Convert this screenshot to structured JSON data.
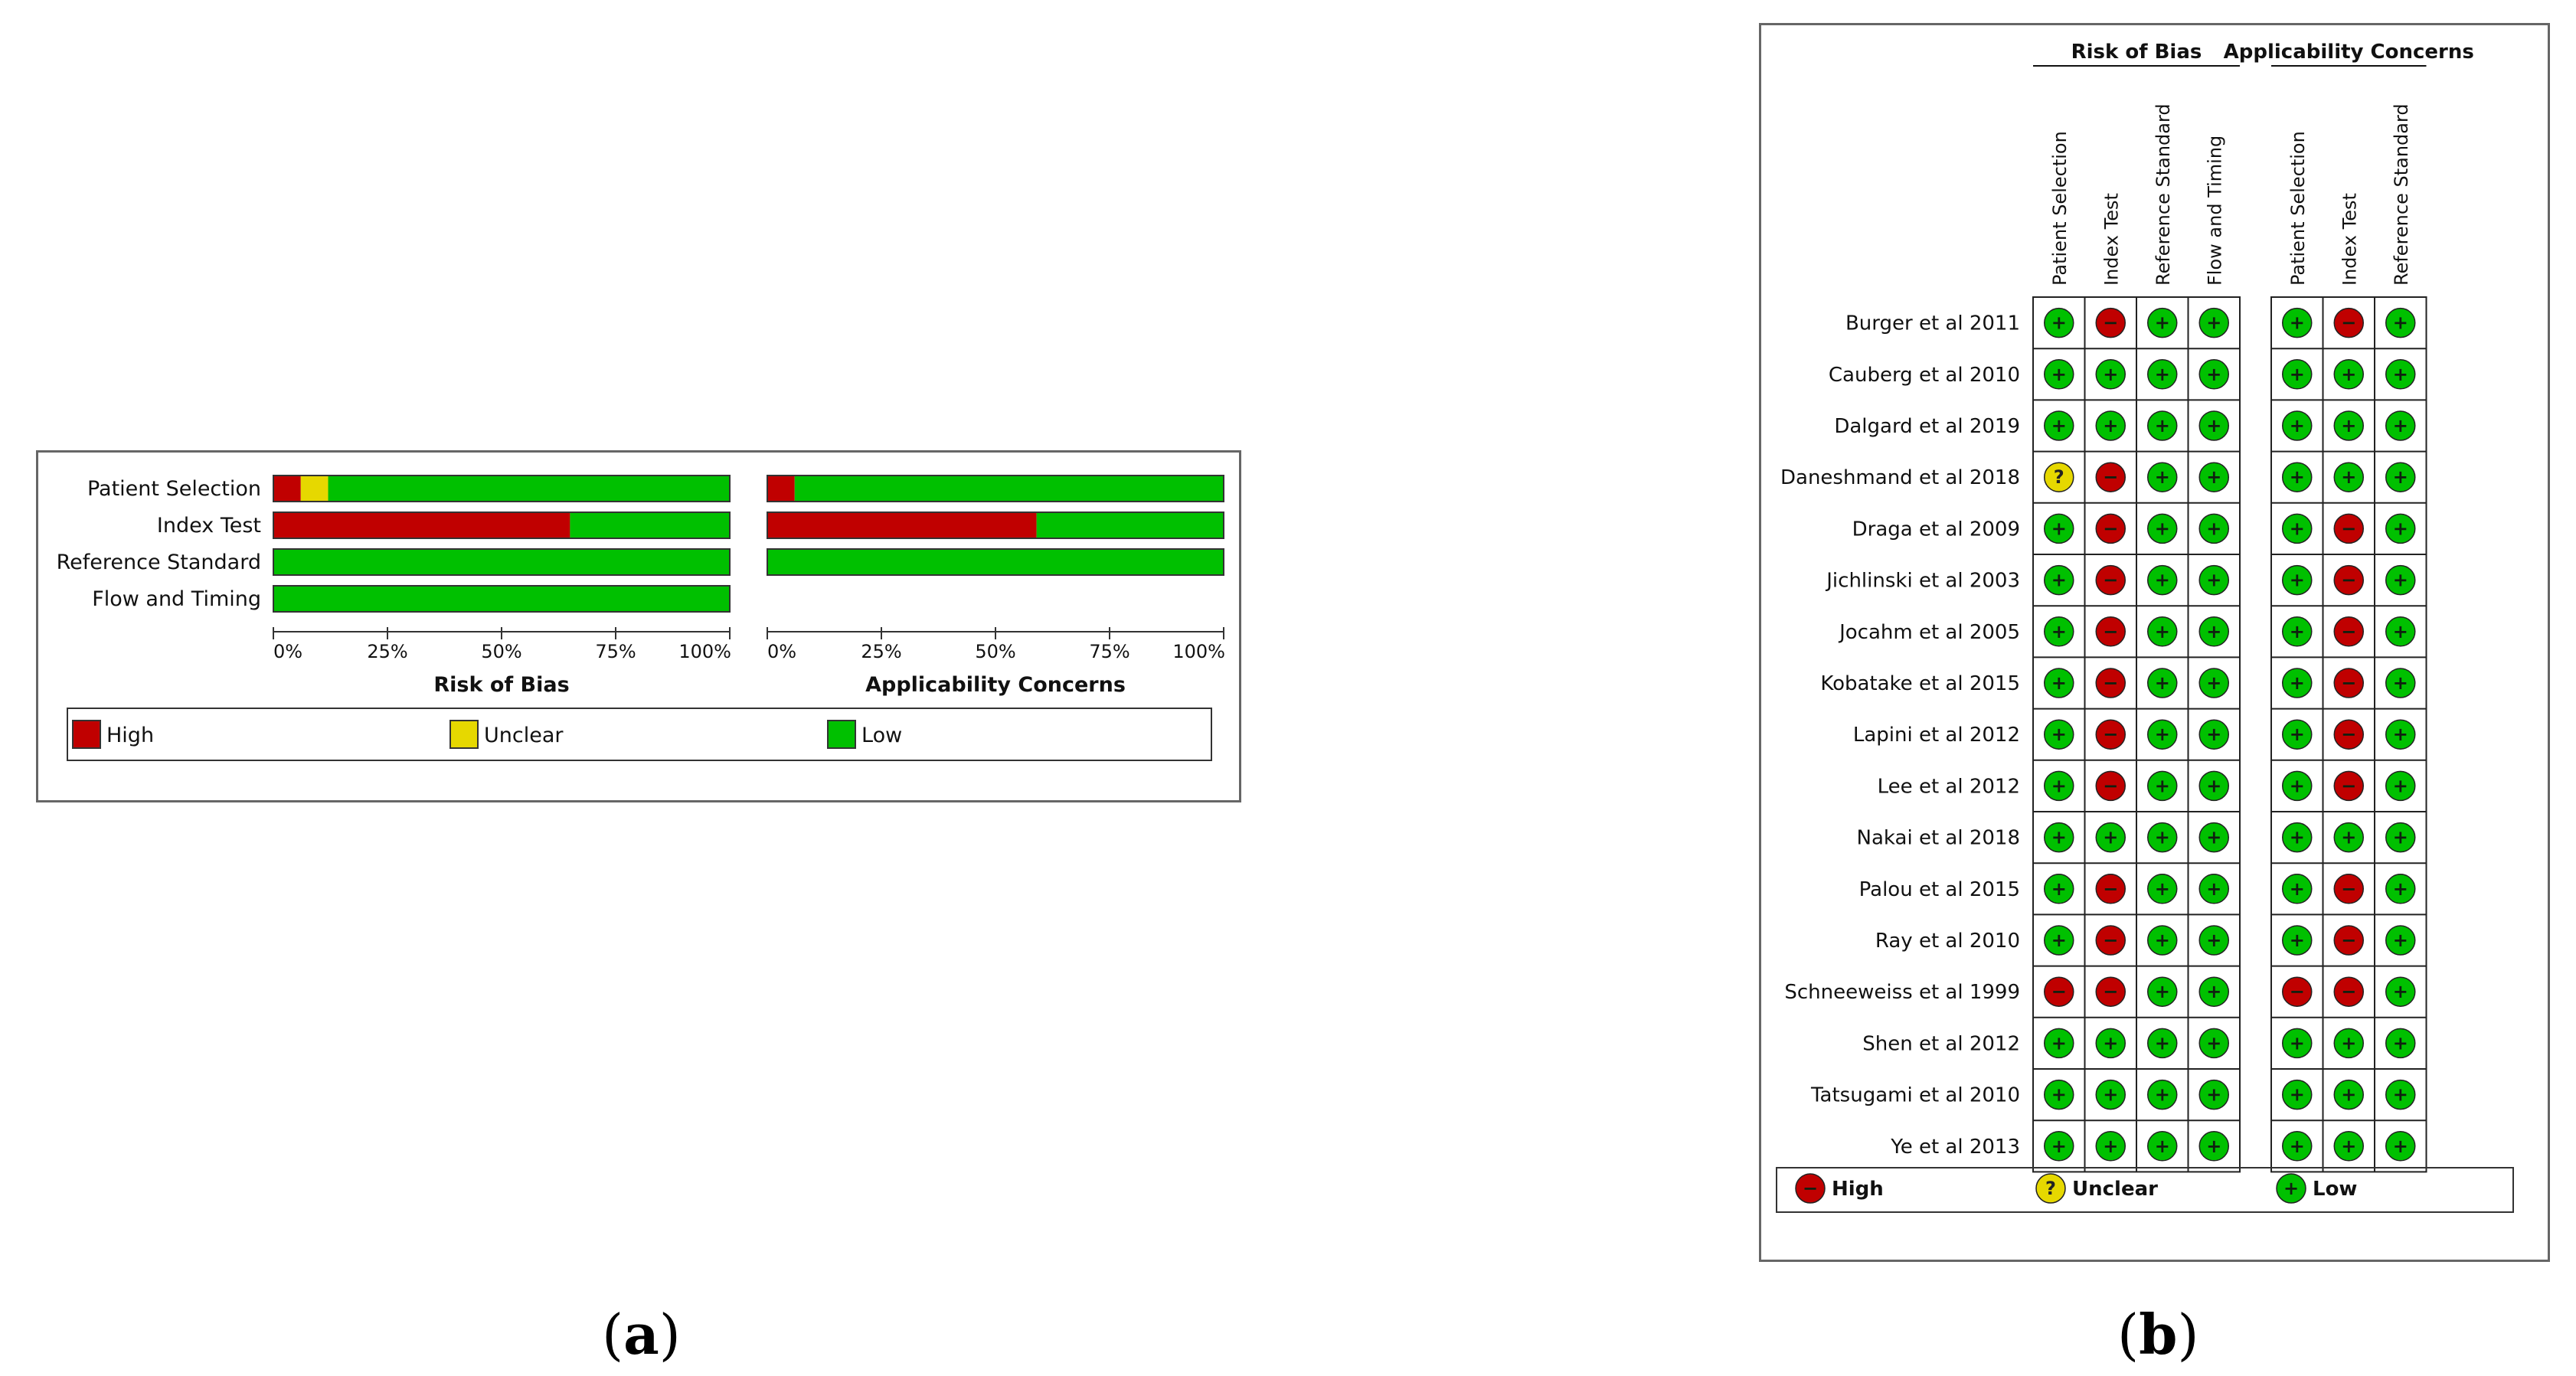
{
  "colors": {
    "high": "#C00000",
    "unclear": "#E6D800",
    "low": "#00C000",
    "border": "#666666"
  },
  "captions": {
    "a_open": "(",
    "a_letter": "a",
    "a_close": ")",
    "b_open": "(",
    "b_letter": "b",
    "b_close": ")"
  },
  "chart_data": [
    {
      "type": "bar",
      "orientation": "horizontal-stacked-percent",
      "panels": [
        {
          "title": "Risk of Bias",
          "categories": [
            "Patient Selection",
            "Index Test",
            "Reference Standard",
            "Flow and Timing"
          ],
          "series": [
            {
              "name": "High",
              "values": [
                6,
                65,
                0,
                0
              ]
            },
            {
              "name": "Unclear",
              "values": [
                6,
                0,
                0,
                0
              ]
            },
            {
              "name": "Low",
              "values": [
                88,
                35,
                100,
                100
              ]
            }
          ]
        },
        {
          "title": "Applicability Concerns",
          "categories": [
            "Patient Selection",
            "Index Test",
            "Reference Standard"
          ],
          "series": [
            {
              "name": "High",
              "values": [
                6,
                59,
                0
              ]
            },
            {
              "name": "Unclear",
              "values": [
                0,
                0,
                0
              ]
            },
            {
              "name": "Low",
              "values": [
                94,
                41,
                100
              ]
            }
          ]
        }
      ],
      "x_ticks": [
        "0%",
        "25%",
        "50%",
        "75%",
        "100%"
      ],
      "xlim": [
        0,
        100
      ],
      "legend": [
        "High",
        "Unclear",
        "Low"
      ],
      "legend_placement": "bottom"
    },
    {
      "type": "table",
      "group_headers": [
        "Risk of Bias",
        "Applicability Concerns"
      ],
      "groups": [
        {
          "title": "Risk of Bias",
          "columns": [
            "Patient Selection",
            "Index Test",
            "Reference Standard",
            "Flow and Timing"
          ]
        },
        {
          "title": "Applicability Concerns",
          "columns": [
            "Patient Selection",
            "Index Test",
            "Reference Standard"
          ]
        }
      ],
      "rows": [
        {
          "study": "Burger et al 2011",
          "rob": [
            "low",
            "high",
            "low",
            "low"
          ],
          "app": [
            "low",
            "high",
            "low"
          ]
        },
        {
          "study": "Cauberg et al 2010",
          "rob": [
            "low",
            "low",
            "low",
            "low"
          ],
          "app": [
            "low",
            "low",
            "low"
          ]
        },
        {
          "study": "Dalgard et al 2019",
          "rob": [
            "low",
            "low",
            "low",
            "low"
          ],
          "app": [
            "low",
            "low",
            "low"
          ]
        },
        {
          "study": "Daneshmand et al 2018",
          "rob": [
            "unclear",
            "high",
            "low",
            "low"
          ],
          "app": [
            "low",
            "low",
            "low"
          ]
        },
        {
          "study": "Draga et al 2009",
          "rob": [
            "low",
            "high",
            "low",
            "low"
          ],
          "app": [
            "low",
            "high",
            "low"
          ]
        },
        {
          "study": "Jichlinski et al 2003",
          "rob": [
            "low",
            "high",
            "low",
            "low"
          ],
          "app": [
            "low",
            "high",
            "low"
          ]
        },
        {
          "study": "Jocahm et al 2005",
          "rob": [
            "low",
            "high",
            "low",
            "low"
          ],
          "app": [
            "low",
            "high",
            "low"
          ]
        },
        {
          "study": "Kobatake et al 2015",
          "rob": [
            "low",
            "high",
            "low",
            "low"
          ],
          "app": [
            "low",
            "high",
            "low"
          ]
        },
        {
          "study": "Lapini et al 2012",
          "rob": [
            "low",
            "high",
            "low",
            "low"
          ],
          "app": [
            "low",
            "high",
            "low"
          ]
        },
        {
          "study": "Lee et al 2012",
          "rob": [
            "low",
            "high",
            "low",
            "low"
          ],
          "app": [
            "low",
            "high",
            "low"
          ]
        },
        {
          "study": "Nakai et al 2018",
          "rob": [
            "low",
            "low",
            "low",
            "low"
          ],
          "app": [
            "low",
            "low",
            "low"
          ]
        },
        {
          "study": "Palou et al 2015",
          "rob": [
            "low",
            "high",
            "low",
            "low"
          ],
          "app": [
            "low",
            "high",
            "low"
          ]
        },
        {
          "study": "Ray et al 2010",
          "rob": [
            "low",
            "high",
            "low",
            "low"
          ],
          "app": [
            "low",
            "high",
            "low"
          ]
        },
        {
          "study": "Schneeweiss et al 1999",
          "rob": [
            "high",
            "high",
            "low",
            "low"
          ],
          "app": [
            "high",
            "high",
            "low"
          ]
        },
        {
          "study": "Shen et al 2012",
          "rob": [
            "low",
            "low",
            "low",
            "low"
          ],
          "app": [
            "low",
            "low",
            "low"
          ]
        },
        {
          "study": "Tatsugami et al 2010",
          "rob": [
            "low",
            "low",
            "low",
            "low"
          ],
          "app": [
            "low",
            "low",
            "low"
          ]
        },
        {
          "study": "Ye et al 2013",
          "rob": [
            "low",
            "low",
            "low",
            "low"
          ],
          "app": [
            "low",
            "low",
            "low"
          ]
        }
      ],
      "symbols": {
        "high": "−",
        "unclear": "?",
        "low": "+"
      },
      "legend": [
        "High",
        "Unclear",
        "Low"
      ],
      "legend_placement": "bottom"
    }
  ]
}
